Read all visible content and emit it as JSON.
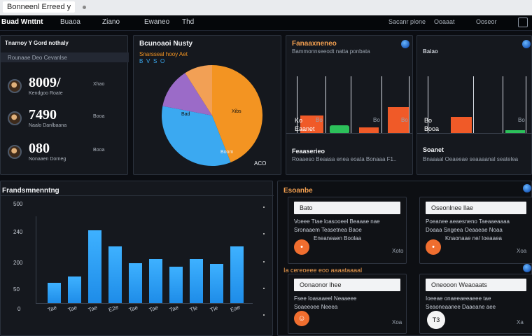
{
  "window": {
    "title": "Bonneenl Erreed y"
  },
  "nav": {
    "brand": "Buad Wnttnt",
    "items": [
      "Buaoa",
      "Ziano",
      "Ewaneo",
      "Thd"
    ],
    "right_links": [
      "Sacanr plone",
      "Ooaaat",
      "Ooseor"
    ]
  },
  "summary_panel": {
    "title": "Tnarnoy Y Gord nothaly",
    "subtitle": "Rounaae Deo Cevanlse",
    "stats": [
      {
        "value": "8009/",
        "label": "Kendgoo Roate",
        "side": "Xhao"
      },
      {
        "value": "7490",
        "label": "Naalo Danlbaana",
        "side": "Booa"
      },
      {
        "value": "080",
        "label": "Nonaaen Dorneg",
        "side": "Booa"
      }
    ]
  },
  "pie_panel": {
    "title": "Bcunoaoi Nusty",
    "subtitle": "Snarsseal hooy Aet",
    "legend": [
      "B",
      "V",
      "S",
      "O"
    ],
    "slices": [
      {
        "label": "Bad",
        "value": 44,
        "color": "#f39422"
      },
      {
        "label": "Xibs",
        "value": 34,
        "color": "#3ba9f1"
      },
      {
        "label": "Boom",
        "value": 13,
        "color": "#9b6bc8"
      },
      {
        "label": "",
        "value": 9,
        "color": "#f2a055"
      }
    ],
    "footer": "ACO"
  },
  "mini_panel_1": {
    "title": "Fanaaxneneo",
    "subtitle": "Bammonnseeodt natta ponbata",
    "left_label": "Ko",
    "left_sub": "Eaanet",
    "right_labels": [
      "Bo",
      "Bo",
      "Bo"
    ],
    "footer_title": "Feaaserieo",
    "footer_text": "Roaaeso Beaasa enea eoata Bonaaa F1.."
  },
  "mini_panel_2": {
    "title": "Baiao",
    "left_label": "Bo",
    "left_sub": "Booa",
    "right_label": "Bo",
    "footer_title": "Soanet",
    "footer_text": "Bnaaaal Oeaeeae seaaaanal seatelea"
  },
  "bar_panel": {
    "title": "Frandsmnenntng",
    "ylabel": "500",
    "yticks": [
      "240",
      "200",
      "50",
      "0"
    ],
    "categories": [
      "Tae",
      "Tae",
      "Tae",
      "E2e",
      "Tae",
      "Tae",
      "Tae",
      "Tle",
      "Tle",
      "Eae"
    ],
    "values": [
      55,
      72,
      200,
      156,
      110,
      120,
      100,
      120,
      108,
      155
    ]
  },
  "cards_section": {
    "title": "Esoanbe",
    "subtitle": "Ia cereoeee eoo aaaataaaal"
  },
  "cards": [
    {
      "header": "Bato",
      "line1": "Voeee Ttae loasooeel Beaaae nae",
      "line2": "Sronaaem Teasetnea Baoe",
      "line3": "Eneaneaen Boolaa",
      "meta": "Xoto",
      "icon": "•",
      "icon_color": "#f06e2f"
    },
    {
      "header": "Oseonlnee llae",
      "line1": "Poeanee aeaesneno Taeaaeaaaa",
      "line2": "Doaaa Sngeea Oeaaeae Noaa",
      "line3": "Knaonaae ne/ Ioeaaea",
      "meta": "Xoa",
      "icon": "•",
      "icon_color": "#f06e2f"
    },
    {
      "header": "Oonaonor lhee",
      "line1": "Fsee Ioasaaeel Neaaeee",
      "line2": "Soaeeoee Neeea",
      "line3": "",
      "meta": "Xoa",
      "icon": "☺",
      "icon_color": "#f06e2f"
    },
    {
      "header": "Oneooon Weaoaats",
      "line1": "Ioeeae onaeeaeeaeee tae",
      "line2": "Seaoneaanee Daaeane aee",
      "line3": "",
      "meta": "Xa",
      "icon": "T3",
      "icon_color": "#f4f4f4"
    }
  ]
}
